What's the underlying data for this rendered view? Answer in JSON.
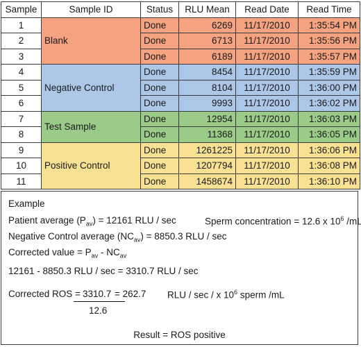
{
  "table": {
    "headers": [
      "Sample",
      "Sample ID",
      "Status",
      "RLU Mean",
      "Read Date",
      "Read Time"
    ],
    "groups": [
      {
        "label": "Blank",
        "color": "#f4a27f"
      },
      {
        "label": "Negative Control",
        "color": "#adc7e8"
      },
      {
        "label": "Test Sample",
        "color": "#9bcb88"
      },
      {
        "label": "Positive Control",
        "color": "#f9e193"
      }
    ],
    "rows": [
      {
        "sample": "1",
        "status": "Done",
        "rlu": "6269",
        "date": "11/17/2010",
        "time": "1:35:54 PM"
      },
      {
        "sample": "2",
        "status": "Done",
        "rlu": "6713",
        "date": "11/17/2010",
        "time": "1:35:56 PM"
      },
      {
        "sample": "3",
        "status": "Done",
        "rlu": "6189",
        "date": "11/17/2010",
        "time": "1:35:57 PM"
      },
      {
        "sample": "4",
        "status": "Done",
        "rlu": "8454",
        "date": "11/17/2010",
        "time": "1:35:59 PM"
      },
      {
        "sample": "5",
        "status": "Done",
        "rlu": "8104",
        "date": "11/17/2010",
        "time": "1:36:00 PM"
      },
      {
        "sample": "6",
        "status": "Done",
        "rlu": "9993",
        "date": "11/17/2010",
        "time": "1:36:02 PM"
      },
      {
        "sample": "7",
        "status": "Done",
        "rlu": "12954",
        "date": "11/17/2010",
        "time": "1:36:03 PM"
      },
      {
        "sample": "8",
        "status": "Done",
        "rlu": "11368",
        "date": "11/17/2010",
        "time": "1:36:05 PM"
      },
      {
        "sample": "9",
        "status": "Done",
        "rlu": "1261225",
        "date": "11/17/2010",
        "time": "1:36:06 PM"
      },
      {
        "sample": "10",
        "status": "Done",
        "rlu": "1207794",
        "date": "11/17/2010",
        "time": "1:36:08 PM"
      },
      {
        "sample": "11",
        "status": "Done",
        "rlu": "1458674",
        "date": "11/17/2010",
        "time": "1:36:10 PM"
      }
    ]
  },
  "example": {
    "heading": "Example",
    "patient_avg": {
      "pre": "Patient average (P",
      "sub": "av",
      "post": ") = 12161 RLU / sec"
    },
    "sperm_conc": {
      "pre": "Sperm concentration = 12.6 x 10",
      "sup": "6",
      "post": " /mL"
    },
    "neg_avg": {
      "pre": "Negative Control average (NC",
      "sub": "av",
      "post": ") = 8850.3 RLU / sec"
    },
    "corrected_value": {
      "pre": "Corrected value = P",
      "sub1": "av",
      "mid": " - NC",
      "sub2": "av"
    },
    "calc_line": "12161 - 8850.3 RLU / sec = 3310.7 RLU / sec",
    "corrected_ros": {
      "label": "Corrected ROS = ",
      "numerator": "3310.7",
      "equals": " = 262.7",
      "units_pre": "RLU / sec / x 10",
      "units_sup": "6",
      "units_post": " sperm /mL",
      "denominator": "12.6"
    },
    "result": "Result = ROS positive"
  }
}
